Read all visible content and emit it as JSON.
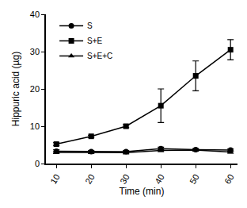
{
  "chart_data": {
    "type": "line",
    "x_label": "Time (min)",
    "y_label": "Hippuric acid (µg)",
    "x": [
      10,
      20,
      30,
      40,
      50,
      60
    ],
    "xlim": [
      7,
      62
    ],
    "xticks": [
      10,
      20,
      30,
      40,
      50,
      60
    ],
    "ylim": [
      0,
      40
    ],
    "yticks": [
      0,
      10,
      20,
      30,
      40
    ],
    "grid": false,
    "legend": "upper left",
    "series": [
      {
        "name": "S",
        "color": "#000000",
        "marker": "circle",
        "values": [
          3.3,
          3.2,
          3.2,
          4.0,
          3.7,
          3.6
        ],
        "error": [
          0.4,
          0.3,
          0.3,
          0.4,
          0.3,
          0.3
        ]
      },
      {
        "name": "S+E",
        "color": "#000000",
        "marker": "square",
        "values": [
          5.2,
          7.3,
          10.0,
          15.5,
          23.5,
          30.5
        ],
        "error": [
          0.4,
          0.3,
          0.4,
          4.5,
          4.0,
          2.7
        ]
      },
      {
        "name": "S+E+C",
        "color": "#000000",
        "marker": "triangle",
        "values": [
          3.0,
          3.0,
          2.9,
          3.5,
          3.6,
          3.1
        ],
        "error": [
          0.3,
          0.3,
          0.3,
          0.3,
          0.3,
          0.3
        ]
      }
    ]
  }
}
